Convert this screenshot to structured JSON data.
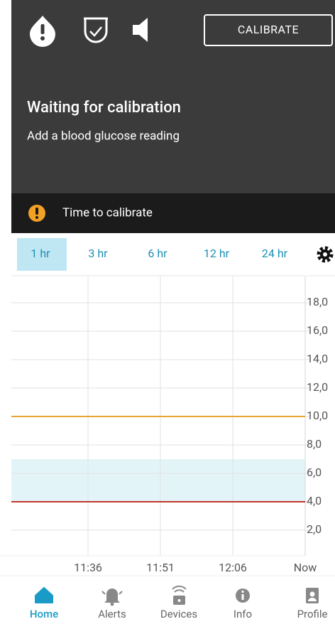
{
  "header": {
    "calibrate_button": "CALIBRATE",
    "title": "Waiting for calibration",
    "subtitle": "Add a blood glucose reading"
  },
  "banner": {
    "text": "Time to calibrate"
  },
  "tabs": {
    "items": [
      "1 hr",
      "3 hr",
      "6 hr",
      "12 hr",
      "24 hr"
    ],
    "selected": 0
  },
  "chart": {
    "ylim": [
      0,
      20
    ],
    "yticks": [
      {
        "value": 2,
        "label": "2,0"
      },
      {
        "value": 4,
        "label": "4,0"
      },
      {
        "value": 6,
        "label": "6,0"
      },
      {
        "value": 8,
        "label": "8,0"
      },
      {
        "value": 10,
        "label": "10,0"
      },
      {
        "value": 12,
        "label": "12,0"
      },
      {
        "value": 14,
        "label": "14,0"
      },
      {
        "value": 16,
        "label": "16,0"
      },
      {
        "value": 18,
        "label": "18,0"
      }
    ],
    "xticks": [
      "11:36",
      "11:51",
      "12:06",
      "Now"
    ],
    "high_line": 10,
    "low_line": 4,
    "target_range": [
      4,
      7
    ]
  },
  "nav": {
    "items": [
      "Home",
      "Alerts",
      "Devices",
      "Info",
      "Profile"
    ],
    "selected": 0
  }
}
